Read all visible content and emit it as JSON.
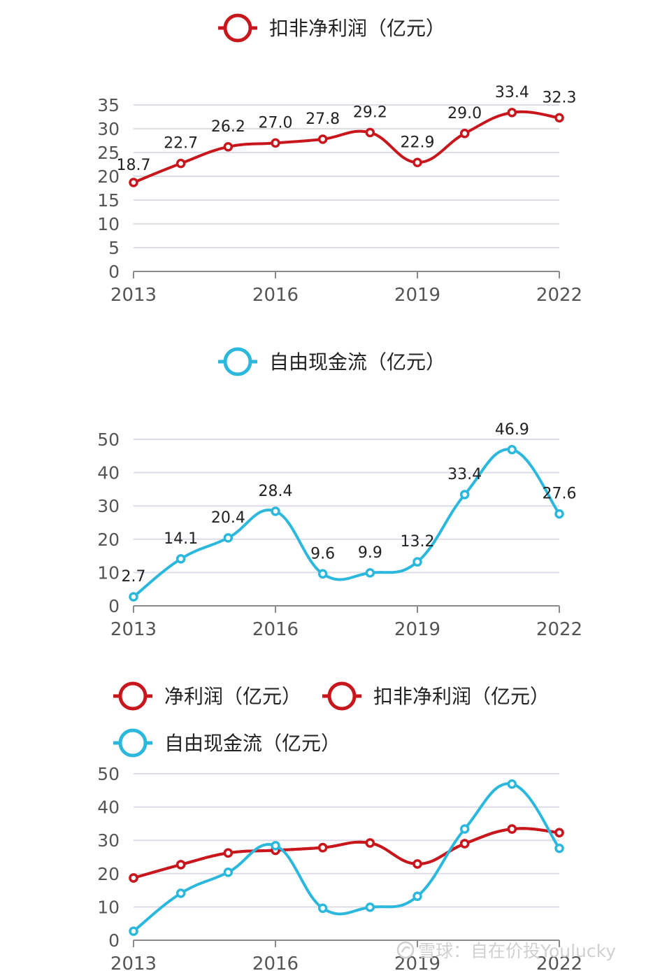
{
  "colors": {
    "profit": "#c8161d",
    "cashflow": "#2cb7dd",
    "grid": "#dcdce6",
    "axis": "#8a8a8a",
    "tick_text": "#555555",
    "label_text": "#222222",
    "watermark": "#d0d0d0"
  },
  "watermark": {
    "icon": "snowball-logo-icon",
    "text": "雪球：自在价投Youlucky"
  },
  "chart_data": [
    {
      "type": "line",
      "legend": [
        "扣非净利润（亿元）"
      ],
      "x": [
        "2013",
        "2014",
        "2015",
        "2016",
        "2017",
        "2018",
        "2019",
        "2020",
        "2021",
        "2022"
      ],
      "x_tick_labels": [
        "2013",
        "2016",
        "2019",
        "2022"
      ],
      "series": [
        {
          "name": "扣非净利润（亿元）",
          "color_key": "profit",
          "values": [
            18.7,
            22.7,
            26.2,
            27.0,
            27.8,
            29.2,
            22.9,
            29.0,
            33.4,
            32.3
          ],
          "labels": [
            "18.7",
            "22.7",
            "26.2",
            "27.0",
            "27.8",
            "29.2",
            "22.9",
            "29.0",
            "33.4",
            "32.3"
          ]
        }
      ],
      "y_ticks": [
        "0",
        "5",
        "10",
        "15",
        "20",
        "25",
        "30",
        "35"
      ],
      "ylim": [
        0,
        35
      ],
      "grid": true,
      "legend_position": "top-center"
    },
    {
      "type": "line",
      "legend": [
        "自由现金流（亿元）"
      ],
      "x": [
        "2013",
        "2014",
        "2015",
        "2016",
        "2017",
        "2018",
        "2019",
        "2020",
        "2021",
        "2022"
      ],
      "x_tick_labels": [
        "2013",
        "2016",
        "2019",
        "2022"
      ],
      "series": [
        {
          "name": "自由现金流（亿元）",
          "color_key": "cashflow",
          "values": [
            2.7,
            14.1,
            20.4,
            28.4,
            9.6,
            9.9,
            13.2,
            33.4,
            46.9,
            27.6
          ],
          "labels": [
            "2.7",
            "14.1",
            "20.4",
            "28.4",
            "9.6",
            "9.9",
            "13.2",
            "33.4",
            "46.9",
            "27.6"
          ]
        }
      ],
      "y_ticks": [
        "0",
        "10",
        "20",
        "30",
        "40",
        "50"
      ],
      "ylim": [
        0,
        50
      ],
      "grid": true,
      "legend_position": "top-center"
    },
    {
      "type": "line",
      "legend": [
        "净利润（亿元）",
        "扣非净利润（亿元）",
        "自由现金流（亿元）"
      ],
      "x": [
        "2013",
        "2014",
        "2015",
        "2016",
        "2017",
        "2018",
        "2019",
        "2020",
        "2021",
        "2022"
      ],
      "x_tick_labels": [
        "2013",
        "2016",
        "2019",
        "2022"
      ],
      "series": [
        {
          "name": "净利润（亿元）",
          "color_key": "profit",
          "values": [
            18.7,
            22.7,
            26.2,
            27.0,
            27.8,
            29.2,
            22.9,
            29.0,
            33.4,
            32.3
          ]
        },
        {
          "name": "扣非净利润（亿元）",
          "color_key": "profit",
          "values": [
            18.7,
            22.7,
            26.2,
            27.0,
            27.8,
            29.2,
            22.9,
            29.0,
            33.4,
            32.3
          ]
        },
        {
          "name": "自由现金流（亿元）",
          "color_key": "cashflow",
          "values": [
            2.7,
            14.1,
            20.4,
            28.4,
            9.6,
            9.9,
            13.2,
            33.4,
            46.9,
            27.6
          ]
        }
      ],
      "y_ticks": [
        "0",
        "10",
        "20",
        "30",
        "40",
        "50"
      ],
      "ylim": [
        0,
        50
      ],
      "grid": true,
      "legend_position": "top-left"
    }
  ]
}
